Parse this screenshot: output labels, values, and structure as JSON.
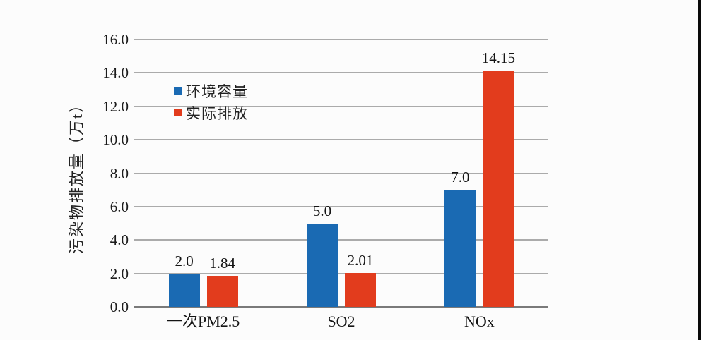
{
  "background": "#fcfcfc",
  "edge_bar_color": "#0a0a0a",
  "chart_data": {
    "type": "bar",
    "ylabel": "污染物排放量（万t）",
    "categories": [
      "一次PM2.5",
      "SO2",
      "NOx"
    ],
    "category_keys": [
      "pm25",
      "so2",
      "nox"
    ],
    "series": [
      {
        "key": "env-capacity",
        "name": "环境容量",
        "color": "#1a6ab3",
        "values": [
          2.0,
          5.0,
          7.0
        ],
        "labels": [
          "2.0",
          "5.0",
          "7.0"
        ]
      },
      {
        "key": "actual-emission",
        "name": "实际排放",
        "color": "#e23c1d",
        "values": [
          1.84,
          2.01,
          14.15
        ],
        "labels": [
          "1.84",
          "2.01",
          "14.15"
        ]
      }
    ],
    "ylim": [
      0,
      16
    ],
    "ytick_step": 2,
    "ytick_labels": [
      "0.0",
      "2.0",
      "4.0",
      "6.0",
      "8.0",
      "10.0",
      "12.0",
      "14.0",
      "16.0"
    ],
    "grid": true,
    "legend_position": "inside-upper-left",
    "colors": {
      "gridline": "#ababab",
      "axis": "#7a7a7a",
      "text": "#1c1c1c"
    }
  }
}
